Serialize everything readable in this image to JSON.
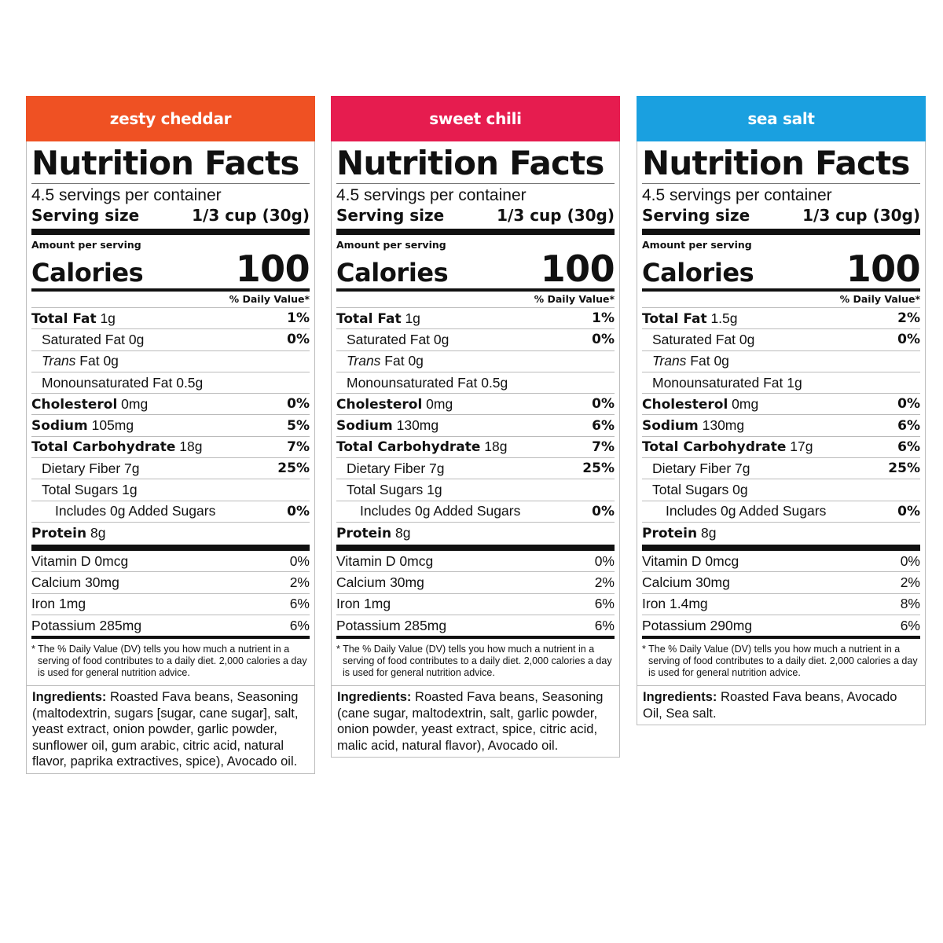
{
  "common": {
    "title": "Nutrition Facts",
    "servings": "4.5 servings per container",
    "serving_size_label": "Serving size",
    "serving_size_value": "1/3 cup (30g)",
    "amount_per_serving": "Amount per serving",
    "calories_label": "Calories",
    "dv_header": "% Daily Value*",
    "footnote": "* The % Daily Value (DV) tells you how much a nutrient in a serving of food contributes to a daily diet. 2,000 calories a day is used for general nutrition advice.",
    "ingredients_label": "Ingredients:"
  },
  "panels": [
    {
      "flavor": "zesty cheddar",
      "color": "#ef5123",
      "calories": "100",
      "rows": [
        {
          "name": "Total Fat",
          "amount": " 1g",
          "pct": "1%"
        },
        {
          "name": "",
          "amount": "Saturated Fat 0g",
          "pct": "0%"
        },
        {
          "name": "",
          "trans": "Trans",
          "amount": " Fat 0g",
          "pct": ""
        },
        {
          "name": "",
          "amount": "Monounsaturated Fat 0.5g",
          "pct": ""
        },
        {
          "name": "Cholesterol",
          "amount": " 0mg",
          "pct": "0%"
        },
        {
          "name": "Sodium",
          "amount": " 105mg",
          "pct": "5%"
        },
        {
          "name": "Total Carbohydrate",
          "amount": " 18g",
          "pct": "7%"
        },
        {
          "name": "",
          "amount": "Dietary Fiber 7g",
          "pct": "25%"
        },
        {
          "name": "",
          "amount": "Total Sugars 1g",
          "pct": ""
        },
        {
          "name": "",
          "amount": "Includes 0g Added Sugars",
          "pct": "0%"
        },
        {
          "name": "Protein",
          "amount": " 8g",
          "pct": ""
        }
      ],
      "vitamins": [
        {
          "label": "Vitamin D 0mcg",
          "pct": "0%"
        },
        {
          "label": "Calcium 30mg",
          "pct": "2%"
        },
        {
          "label": "Iron 1mg",
          "pct": "6%"
        },
        {
          "label": "Potassium 285mg",
          "pct": "6%"
        }
      ],
      "ingredients": "Roasted Fava beans, Seasoning (maltodextrin, sugars [sugar, cane sugar], salt, yeast extract, onion powder, garlic powder, sunflower oil, gum arabic, citric acid, natural flavor, paprika extractives, spice), Avocado oil."
    },
    {
      "flavor": "sweet chili",
      "color": "#e61c4f",
      "calories": "100",
      "rows": [
        {
          "name": "Total Fat",
          "amount": " 1g",
          "pct": "1%"
        },
        {
          "name": "",
          "amount": "Saturated Fat 0g",
          "pct": "0%"
        },
        {
          "name": "",
          "trans": "Trans",
          "amount": " Fat 0g",
          "pct": ""
        },
        {
          "name": "",
          "amount": "Monounsaturated Fat 0.5g",
          "pct": ""
        },
        {
          "name": "Cholesterol",
          "amount": " 0mg",
          "pct": "0%"
        },
        {
          "name": "Sodium",
          "amount": " 130mg",
          "pct": "6%"
        },
        {
          "name": "Total Carbohydrate",
          "amount": " 18g",
          "pct": "7%"
        },
        {
          "name": "",
          "amount": "Dietary Fiber 7g",
          "pct": "25%"
        },
        {
          "name": "",
          "amount": "Total Sugars 1g",
          "pct": ""
        },
        {
          "name": "",
          "amount": "Includes 0g Added Sugars",
          "pct": "0%"
        },
        {
          "name": "Protein",
          "amount": " 8g",
          "pct": ""
        }
      ],
      "vitamins": [
        {
          "label": "Vitamin D 0mcg",
          "pct": "0%"
        },
        {
          "label": "Calcium 30mg",
          "pct": "2%"
        },
        {
          "label": "Iron 1mg",
          "pct": "6%"
        },
        {
          "label": "Potassium 285mg",
          "pct": "6%"
        }
      ],
      "ingredients": "Roasted Fava beans, Seasoning (cane sugar, maltodextrin, salt, garlic powder, onion powder, yeast extract, spice, citric acid, malic acid, natural flavor), Avocado oil."
    },
    {
      "flavor": "sea salt",
      "color": "#1aa0e0",
      "calories": "100",
      "rows": [
        {
          "name": "Total Fat",
          "amount": " 1.5g",
          "pct": "2%"
        },
        {
          "name": "",
          "amount": "Saturated Fat 0g",
          "pct": "0%"
        },
        {
          "name": "",
          "trans": "Trans",
          "amount": " Fat 0g",
          "pct": ""
        },
        {
          "name": "",
          "amount": "Monounsaturated Fat 1g",
          "pct": ""
        },
        {
          "name": "Cholesterol",
          "amount": " 0mg",
          "pct": "0%"
        },
        {
          "name": "Sodium",
          "amount": " 130mg",
          "pct": "6%"
        },
        {
          "name": "Total Carbohydrate",
          "amount": " 17g",
          "pct": "6%"
        },
        {
          "name": "",
          "amount": "Dietary Fiber 7g",
          "pct": "25%"
        },
        {
          "name": "",
          "amount": "Total Sugars 0g",
          "pct": ""
        },
        {
          "name": "",
          "amount": "Includes 0g Added Sugars",
          "pct": "0%"
        },
        {
          "name": "Protein",
          "amount": " 8g",
          "pct": ""
        }
      ],
      "vitamins": [
        {
          "label": "Vitamin D 0mcg",
          "pct": "0%"
        },
        {
          "label": "Calcium 30mg",
          "pct": "2%"
        },
        {
          "label": "Iron 1.4mg",
          "pct": "8%"
        },
        {
          "label": "Potassium 290mg",
          "pct": "6%"
        }
      ],
      "ingredients": "Roasted Fava beans, Avocado Oil, Sea salt."
    }
  ]
}
